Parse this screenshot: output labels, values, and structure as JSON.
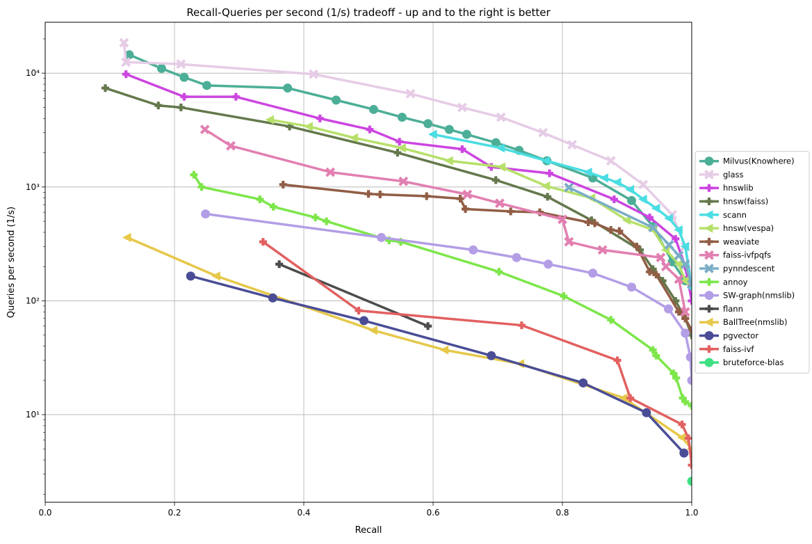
{
  "chart_data": {
    "type": "line",
    "title": "Recall-Queries per second (1/s) tradeoff - up and to the right is better",
    "xlabel": "Recall",
    "ylabel": "Queries per second (1/s)",
    "xlim": [
      0.0,
      1.0
    ],
    "ylim": [
      1.7,
      28000
    ],
    "yscale": "log",
    "grid": true,
    "legend_position": "center-right-outside",
    "x_ticks": [
      0.0,
      0.2,
      0.4,
      0.6,
      0.8,
      1.0
    ],
    "x_tick_labels": [
      "0.0",
      "0.2",
      "0.4",
      "0.6",
      "0.8",
      "1.0"
    ],
    "y_ticks": [
      10,
      100,
      1000,
      10000
    ],
    "y_tick_labels": [
      "10¹",
      "10²",
      "10³",
      "10⁴"
    ],
    "series": [
      {
        "name": "Milvus(Knowhere)",
        "color": "#4cae97",
        "marker": "circle",
        "x": [
          0.13,
          0.18,
          0.215,
          0.25,
          0.375,
          0.45,
          0.508,
          0.552,
          0.592,
          0.625,
          0.652,
          0.697,
          0.733,
          0.776,
          0.847,
          0.907,
          0.94,
          0.97,
          0.99
        ],
        "y": [
          14500,
          11000,
          9200,
          7800,
          7400,
          5800,
          4800,
          4100,
          3600,
          3200,
          2900,
          2450,
          2100,
          1700,
          1200,
          760,
          450,
          220,
          150
        ]
      },
      {
        "name": "glass",
        "color": "#e6cce6",
        "marker": "x",
        "x": [
          0.122,
          0.125,
          0.21,
          0.415,
          0.565,
          0.645,
          0.705,
          0.77,
          0.815,
          0.875,
          0.925,
          0.97,
          0.99,
          1.0
        ],
        "y": [
          18500,
          12500,
          12000,
          9800,
          6600,
          5000,
          4100,
          3000,
          2350,
          1700,
          1050,
          570,
          300,
          150
        ]
      },
      {
        "name": "hnswlib",
        "color": "#cc45e0",
        "marker": "plus",
        "x": [
          0.125,
          0.215,
          0.295,
          0.425,
          0.502,
          0.548,
          0.645,
          0.69,
          0.78,
          0.88,
          0.935,
          0.975,
          0.99,
          1.0
        ],
        "y": [
          9800,
          6200,
          6200,
          4000,
          3200,
          2500,
          2150,
          1500,
          1320,
          780,
          540,
          350,
          200,
          100
        ]
      },
      {
        "name": "hnsw(faiss)",
        "color": "#64784c",
        "marker": "plus",
        "x": [
          0.093,
          0.175,
          0.21,
          0.378,
          0.545,
          0.697,
          0.777,
          0.845,
          0.92,
          0.94,
          0.955,
          0.975,
          0.99,
          1.0
        ],
        "y": [
          7400,
          5200,
          5000,
          3400,
          2000,
          1150,
          820,
          510,
          280,
          190,
          150,
          100,
          70,
          50
        ]
      },
      {
        "name": "scann",
        "color": "#4adde2",
        "marker": "triangle-left",
        "x": [
          0.6,
          0.705,
          0.775,
          0.84,
          0.865,
          0.885,
          0.905,
          0.925,
          0.945,
          0.965,
          0.98,
          0.99,
          1.0
        ],
        "y": [
          2900,
          2200,
          1700,
          1350,
          1200,
          1100,
          950,
          780,
          650,
          530,
          420,
          300,
          130
        ]
      },
      {
        "name": "hnsw(vespa)",
        "color": "#b6e06a",
        "marker": "triangle-left",
        "x": [
          0.348,
          0.408,
          0.478,
          0.552,
          0.625,
          0.706,
          0.775,
          0.845,
          0.9,
          0.94,
          0.96,
          0.98,
          0.99
        ],
        "y": [
          3900,
          3400,
          2700,
          2200,
          1700,
          1500,
          1020,
          800,
          510,
          420,
          280,
          210,
          150
        ]
      },
      {
        "name": "weaviate",
        "color": "#915e45",
        "marker": "plus",
        "x": [
          0.368,
          0.5,
          0.518,
          0.59,
          0.642,
          0.65,
          0.72,
          0.765,
          0.84,
          0.85,
          0.875,
          0.888,
          0.915,
          0.935,
          0.945,
          0.98,
          0.99,
          1.0
        ],
        "y": [
          1050,
          870,
          860,
          830,
          790,
          640,
          610,
          600,
          490,
          480,
          420,
          410,
          300,
          180,
          170,
          80,
          70,
          55
        ]
      },
      {
        "name": "faiss-ivfpqfs",
        "color": "#e27fb1",
        "marker": "x",
        "x": [
          0.247,
          0.287,
          0.441,
          0.554,
          0.653,
          0.703,
          0.8,
          0.81,
          0.862,
          0.952,
          0.96,
          0.98,
          0.99
        ],
        "y": [
          3200,
          2300,
          1350,
          1120,
          860,
          720,
          520,
          330,
          280,
          240,
          200,
          155,
          80
        ]
      },
      {
        "name": "pynndescent",
        "color": "#7aadc6",
        "marker": "x",
        "x": [
          0.81,
          0.94,
          0.965,
          0.98,
          0.99,
          1.0
        ],
        "y": [
          990,
          440,
          310,
          250,
          210,
          140
        ]
      },
      {
        "name": "annoy",
        "color": "#7de64a",
        "marker": "plus",
        "x": [
          0.23,
          0.242,
          0.332,
          0.353,
          0.418,
          0.435,
          0.532,
          0.55,
          0.702,
          0.802,
          0.875,
          0.94,
          0.945,
          0.972,
          0.976,
          0.986,
          0.99,
          1.0
        ],
        "y": [
          1280,
          1000,
          780,
          670,
          540,
          500,
          340,
          330,
          180,
          110,
          68,
          37,
          33,
          23,
          21,
          14,
          13,
          12
        ]
      },
      {
        "name": "SW-graph(nmslib)",
        "color": "#b39ee6",
        "marker": "circle",
        "x": [
          0.248,
          0.52,
          0.662,
          0.729,
          0.778,
          0.847,
          0.907,
          0.964,
          0.99,
          0.998,
          1.0
        ],
        "y": [
          580,
          360,
          280,
          240,
          210,
          175,
          132,
          85,
          52,
          32,
          20
        ]
      },
      {
        "name": "flann",
        "color": "#4c4c4c",
        "marker": "plus",
        "x": [
          0.362,
          0.592
        ],
        "y": [
          210,
          60
        ]
      },
      {
        "name": "BallTree(nmslib)",
        "color": "#e6c84a",
        "marker": "triangle-left",
        "x": [
          0.127,
          0.265,
          0.508,
          0.618,
          0.735,
          0.895,
          0.985,
          1.0
        ],
        "y": [
          360,
          165,
          55,
          37,
          28,
          14,
          6.3,
          5
        ]
      },
      {
        "name": "pgvector",
        "color": "#4a4d96",
        "marker": "circle",
        "x": [
          0.225,
          0.352,
          0.493,
          0.69,
          0.832,
          0.93,
          0.988
        ],
        "y": [
          165,
          106,
          67,
          33,
          19,
          10.4,
          4.6
        ]
      },
      {
        "name": "faiss-ivf",
        "color": "#e26060",
        "marker": "plus",
        "x": [
          0.337,
          0.485,
          0.737,
          0.885,
          0.905,
          0.985,
          0.995,
          1.0
        ],
        "y": [
          330,
          82,
          61,
          30,
          14,
          8.2,
          6.2,
          3.6
        ]
      },
      {
        "name": "bruteforce-blas",
        "color": "#3fe082",
        "marker": "circle",
        "x": [
          1.0
        ],
        "y": [
          2.6
        ]
      }
    ]
  }
}
